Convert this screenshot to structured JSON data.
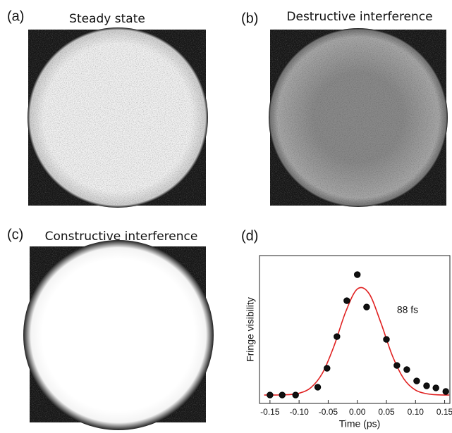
{
  "panels": [
    {
      "label": "(a)",
      "title": "Steady state"
    },
    {
      "label": "(b)",
      "title": "Destructive interference"
    },
    {
      "label": "(c)",
      "title": "Constructive interference"
    }
  ],
  "chart_data": {
    "type": "scatter",
    "panel_label": "(d)",
    "x_label": "Time (ps)",
    "y_label": "Fringe visibility",
    "annotation": "88 fs",
    "xlim": [
      -0.168,
      0.159
    ],
    "ylim": [
      0,
      1
    ],
    "xticks": [
      -0.15,
      {
        "value": -0.1,
        "label": "-0.10"
      },
      -0.05,
      {
        "value": 0,
        "label": "0.00"
      },
      0.05,
      {
        "value": 0.1,
        "label": "0.10"
      },
      0.15
    ],
    "series": [
      {
        "style": "points",
        "color": "#111111",
        "x": [
          -0.15,
          -0.129,
          -0.106,
          -0.068,
          -0.052,
          -0.035,
          -0.018,
          0.0,
          0.016,
          0.05,
          0.068,
          0.085,
          0.102,
          0.119,
          0.135,
          0.152
        ],
        "values": [
          0.057,
          0.057,
          0.057,
          0.11,
          0.238,
          0.452,
          0.695,
          0.871,
          0.652,
          0.433,
          0.257,
          0.229,
          0.152,
          0.119,
          0.105,
          0.081
        ]
      },
      {
        "style": "line",
        "color": "#e02020",
        "x": [
          -0.16,
          -0.14,
          -0.12,
          -0.1,
          -0.08,
          -0.06,
          -0.04,
          -0.02,
          0.0,
          0.02,
          0.04,
          0.06,
          0.08,
          0.1,
          0.12,
          0.14,
          0.158
        ],
        "values": [
          0.057,
          0.057,
          0.059,
          0.069,
          0.106,
          0.204,
          0.388,
          0.619,
          0.774,
          0.744,
          0.551,
          0.325,
          0.166,
          0.09,
          0.065,
          0.058,
          0.057
        ]
      }
    ]
  }
}
